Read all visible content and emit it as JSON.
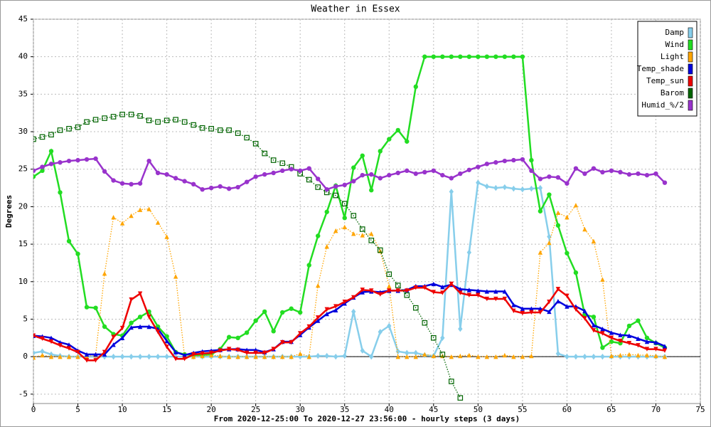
{
  "chart_data": {
    "type": "line",
    "title": "Weather in Essex",
    "x_label": "From 2020-12-25:00 To 2020-12-27 23:56:00 - hourly steps (3 days)",
    "y_label": "Degrees",
    "x": [
      0,
      1,
      2,
      3,
      4,
      5,
      6,
      7,
      8,
      9,
      10,
      11,
      12,
      13,
      14,
      15,
      16,
      17,
      18,
      19,
      20,
      21,
      22,
      23,
      24,
      25,
      26,
      27,
      28,
      29,
      30,
      31,
      32,
      33,
      34,
      35,
      36,
      37,
      38,
      39,
      40,
      41,
      42,
      43,
      44,
      45,
      46,
      47,
      48,
      49,
      50,
      51,
      52,
      53,
      54,
      55,
      56,
      57,
      58,
      59,
      60,
      61,
      62,
      63,
      64,
      65,
      66,
      67,
      68,
      69,
      70,
      71
    ],
    "xlim": [
      0,
      75
    ],
    "xticks": [
      0,
      5,
      10,
      15,
      20,
      25,
      30,
      35,
      40,
      45,
      50,
      55,
      60,
      65,
      70,
      75
    ],
    "ylim": [
      -6.25,
      45
    ],
    "yticks": [
      -5,
      0,
      5,
      10,
      15,
      20,
      25,
      30,
      35,
      40,
      45
    ],
    "grid": true,
    "legend": "top-right",
    "series": [
      {
        "name": "Damp",
        "color": "#87ceeb",
        "marker": "diamond",
        "dashed": false,
        "values": [
          0.5,
          0.7,
          0.3,
          0.1,
          0,
          0,
          0,
          0,
          0,
          0,
          0,
          0,
          0,
          0,
          0,
          0,
          0,
          0,
          0,
          0,
          0,
          0,
          0,
          0,
          0,
          0,
          0,
          0,
          0,
          0,
          0,
          0,
          0.1,
          0.1,
          0,
          0.1,
          6.0,
          0.8,
          0,
          3.3,
          4.1,
          0.7,
          0.5,
          0.5,
          0.2,
          0.1,
          2.5,
          22,
          3.7,
          13.9,
          23.2,
          22.7,
          22.5,
          22.6,
          22.4,
          22.3,
          22.4,
          22.5,
          16,
          0.4,
          0,
          0,
          0,
          0,
          0,
          0,
          0,
          0,
          0,
          0,
          0,
          0
        ]
      },
      {
        "name": "Wind",
        "color": "#22dd22",
        "marker": "circle",
        "dashed": false,
        "values": [
          24,
          24.8,
          27.4,
          21.9,
          15.4,
          13.7,
          6.6,
          6.5,
          4,
          3,
          2.8,
          4.5,
          5.3,
          6,
          4,
          2.7,
          0.6,
          0.3,
          0.2,
          0.2,
          0.3,
          1,
          2.6,
          2.5,
          3.2,
          4.8,
          6,
          3.4,
          5.9,
          6.4,
          5.9,
          12.2,
          16.1,
          19.3,
          22.8,
          18.5,
          25.2,
          26.8,
          22.2,
          27.4,
          29,
          30.2,
          28.7,
          36,
          40,
          40,
          40,
          40,
          40,
          40,
          40,
          40,
          40,
          40,
          40,
          40,
          26.2,
          19.4,
          21.6,
          17.5,
          13.8,
          11.2,
          5.6,
          5.3,
          1.2,
          2.0,
          1.8,
          4.1,
          4.8,
          2.5,
          1.8,
          1.2
        ]
      },
      {
        "name": "Light",
        "color": "#ffa500",
        "marker": "triangle",
        "dashed": true,
        "values": [
          -0.1,
          0.2,
          0,
          0,
          0,
          0,
          0,
          0.2,
          11.1,
          18.6,
          17.8,
          18.8,
          19.6,
          19.7,
          17.9,
          16,
          10.7,
          0,
          0,
          0.1,
          0.2,
          0.1,
          0,
          0,
          0,
          0,
          0,
          0,
          0,
          0,
          0.4,
          0,
          9.5,
          14.7,
          16.8,
          17.3,
          16.4,
          16.2,
          16.4,
          14.1,
          9.4,
          0,
          0,
          0,
          0.3,
          0.1,
          0.1,
          0,
          0.1,
          0.2,
          0,
          0,
          0,
          0.2,
          0,
          0,
          0.1,
          13.9,
          15.2,
          19.2,
          18.6,
          20.2,
          17,
          15.4,
          10.3,
          0.1,
          0.2,
          0.3,
          0.2,
          0.2,
          0.1,
          0
        ]
      },
      {
        "name": "Temp_shade",
        "color": "#0000dd",
        "marker": "triangle",
        "dashed": false,
        "values": [
          2.8,
          2.7,
          2.5,
          1.9,
          1.6,
          0.8,
          0.3,
          0.3,
          0.3,
          1.6,
          2.5,
          3.9,
          4,
          4,
          3.7,
          2.1,
          0.6,
          0.2,
          0.5,
          0.7,
          0.8,
          0.9,
          1,
          1,
          0.9,
          0.9,
          0.6,
          1,
          2,
          2,
          2.9,
          3.9,
          4.8,
          5.7,
          6.2,
          7.1,
          7.9,
          8.6,
          8.7,
          8.6,
          8.8,
          8.8,
          8.9,
          9.4,
          9.4,
          9.7,
          9.3,
          9.6,
          9,
          8.9,
          8.8,
          8.7,
          8.7,
          8.7,
          6.9,
          6.4,
          6.4,
          6.4,
          6,
          7.4,
          6.7,
          6.7,
          6.1,
          4.2,
          3.7,
          3.2,
          2.9,
          2.8,
          2.4,
          2,
          1.9,
          1.4
        ]
      },
      {
        "name": "Temp_sun",
        "color": "#ee0000",
        "marker": "triangle-down",
        "dashed": false,
        "values": [
          2.8,
          2.4,
          2,
          1.5,
          1.1,
          0.6,
          -0.5,
          -0.5,
          0.6,
          2.6,
          3.8,
          7.6,
          8.4,
          5.3,
          3.3,
          1.3,
          -0.3,
          -0.3,
          0.3,
          0.4,
          0.5,
          0.8,
          1,
          0.9,
          0.5,
          0.5,
          0.5,
          1,
          1.9,
          1.9,
          3.1,
          4,
          5.2,
          6.3,
          6.7,
          7.3,
          7.9,
          8.9,
          8.8,
          8.3,
          8.8,
          8.8,
          8.8,
          9.2,
          9.2,
          8.6,
          8.5,
          9.7,
          8.5,
          8.2,
          8.2,
          7.7,
          7.7,
          7.7,
          6.1,
          5.8,
          5.9,
          5.9,
          7.3,
          9,
          8.1,
          6.3,
          5.1,
          3.5,
          3.1,
          2.5,
          2.1,
          1.8,
          1.5,
          1,
          1,
          0.8
        ]
      },
      {
        "name": "Barom",
        "color": "#006400",
        "marker": "square",
        "dashed": true,
        "values": [
          29,
          29.3,
          29.6,
          30.2,
          30.4,
          30.6,
          31.3,
          31.6,
          31.8,
          32.0,
          32.3,
          32.3,
          32.1,
          31.5,
          31.3,
          31.5,
          31.6,
          31.3,
          30.9,
          30.5,
          30.4,
          30.2,
          30.2,
          29.8,
          29.2,
          28.4,
          27.1,
          26.2,
          25.8,
          25.3,
          24.4,
          23.6,
          22.6,
          21.9,
          21.5,
          20.4,
          18.8,
          17.0,
          15.5,
          14.2,
          11.0,
          9.5,
          8.2,
          6.5,
          4.5,
          2.5,
          0.3,
          -3.3,
          -5.5,
          null,
          null,
          null,
          null,
          null,
          null,
          null,
          null,
          null,
          null,
          null,
          null,
          null,
          null,
          null,
          null,
          null,
          null,
          null,
          null,
          null,
          null,
          null
        ]
      },
      {
        "name": "Humid_%/2",
        "color": "#9933cc",
        "marker": "circle",
        "dashed": false,
        "values": [
          24.8,
          25.3,
          25.7,
          25.9,
          26.1,
          26.2,
          26.3,
          26.4,
          24.7,
          23.5,
          23.1,
          23,
          23.1,
          26.1,
          24.5,
          24.3,
          23.8,
          23.4,
          23,
          22.3,
          22.5,
          22.7,
          22.4,
          22.6,
          23.3,
          24,
          24.3,
          24.5,
          24.8,
          25,
          24.8,
          25.1,
          23.7,
          22.3,
          22.7,
          22.9,
          23.4,
          24.2,
          24.3,
          23.8,
          24.2,
          24.5,
          24.8,
          24.4,
          24.6,
          24.8,
          24.2,
          23.8,
          24.4,
          24.9,
          25.3,
          25.7,
          25.9,
          26.1,
          26.2,
          26.3,
          24.8,
          23.7,
          24,
          23.9,
          23.1,
          25.1,
          24.4,
          25.1,
          24.6,
          24.8,
          24.6,
          24.3,
          24.4,
          24.2,
          24.4,
          23.2
        ]
      }
    ]
  }
}
